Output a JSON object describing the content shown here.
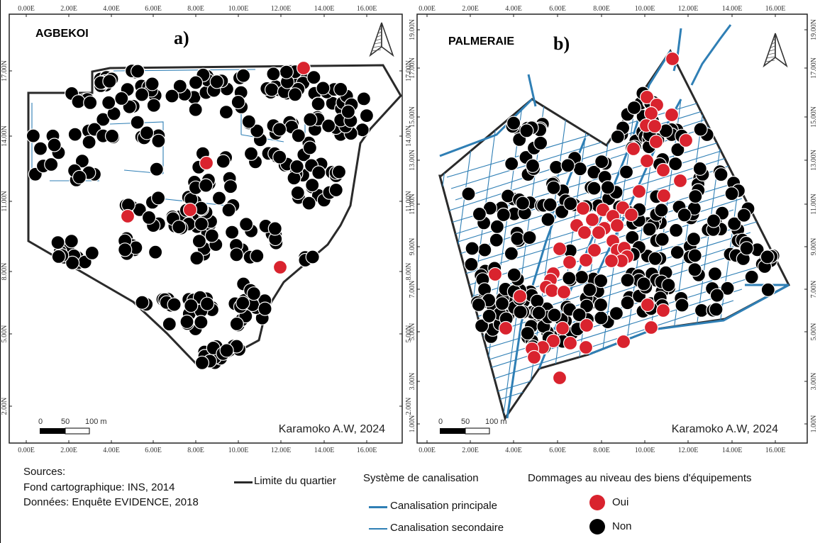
{
  "colors": {
    "frame": "#222222",
    "boundary": "#2a2a2a",
    "canal": "#2f7fb5",
    "oui": "#d9232e",
    "non": "#000000",
    "axis_text": "#333333"
  },
  "maps": [
    {
      "name": "AGBEKOI",
      "letter": "a)",
      "credit": "Karamoko A.W, 2024",
      "x_ticks": [
        "0.00E",
        "2.00E",
        "4.00E",
        "6.00E",
        "8.00E",
        "10.00E",
        "12.00E",
        "14.00E",
        "16.00E"
      ],
      "y_ticks": [
        "2.00N",
        "5.00N",
        "8.00N",
        "11.00N",
        "14.00N",
        "17.00N"
      ],
      "scale": {
        "zero": "0",
        "mid": "50",
        "end": "100 m"
      },
      "north_arrow": "north-arrow-icon"
    },
    {
      "name": "PALMERAIE",
      "letter": "b)",
      "credit": "Karamoko A.W, 2024",
      "x_ticks": [
        "0.00E",
        "2.00E",
        "4.00E",
        "6.00E",
        "8.00E",
        "10.00E",
        "12.00E",
        "14.00E",
        "16.00E"
      ],
      "y_ticks": [
        "1.00N",
        "3.00N",
        "5.00N",
        "7.00N",
        "9.00N",
        "11.00N",
        "13.00N",
        "15.00N",
        "17.00N",
        "19.00N"
      ],
      "scale": {
        "zero": "0",
        "mid": "50",
        "end": "100 m"
      },
      "north_arrow": "north-arrow-icon"
    }
  ],
  "legend": {
    "sources_title": "Sources:",
    "sources_line1": "Fond cartographique: INS, 2014",
    "sources_line2": "Données: Enquête EVIDENCE, 2018",
    "boundary_label": "Limite du quartier",
    "canal_title": "Système de canalisation",
    "canal_main": "Canalisation principale",
    "canal_secondary": "Canalisation secondaire",
    "damage_title": "Dommages au niveau des biens d'équipements",
    "damage_yes": "Oui",
    "damage_no": "Non"
  }
}
